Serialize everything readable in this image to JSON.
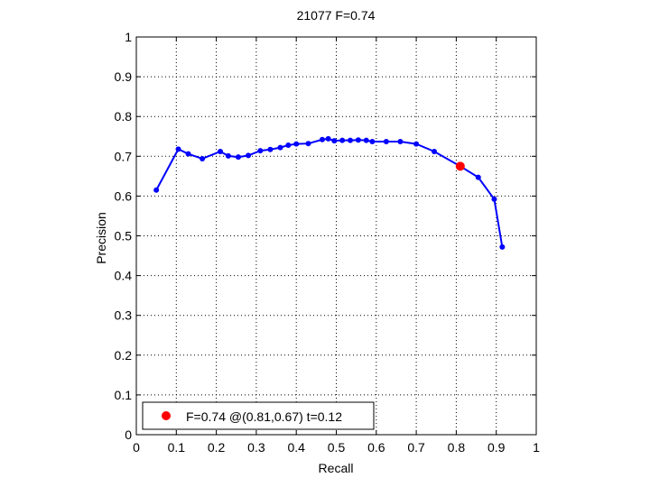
{
  "chart_data": {
    "type": "line",
    "title": "21077 F=0.74",
    "xlabel": "Recall",
    "ylabel": "Precision",
    "xlim": [
      0,
      1
    ],
    "ylim": [
      0,
      1
    ],
    "xticks": [
      "0",
      "0.1",
      "0.2",
      "0.3",
      "0.4",
      "0.5",
      "0.6",
      "0.7",
      "0.8",
      "0.9",
      "1"
    ],
    "yticks": [
      "0",
      "0.1",
      "0.2",
      "0.3",
      "0.4",
      "0.5",
      "0.6",
      "0.7",
      "0.8",
      "0.9",
      "1"
    ],
    "grid": true,
    "series": [
      {
        "color": "#0000ff",
        "points": [
          [
            0.05,
            0.615
          ],
          [
            0.105,
            0.718
          ],
          [
            0.13,
            0.706
          ],
          [
            0.165,
            0.694
          ],
          [
            0.21,
            0.712
          ],
          [
            0.23,
            0.701
          ],
          [
            0.255,
            0.698
          ],
          [
            0.28,
            0.702
          ],
          [
            0.31,
            0.714
          ],
          [
            0.335,
            0.717
          ],
          [
            0.36,
            0.722
          ],
          [
            0.38,
            0.728
          ],
          [
            0.4,
            0.731
          ],
          [
            0.43,
            0.732
          ],
          [
            0.465,
            0.742
          ],
          [
            0.48,
            0.744
          ],
          [
            0.495,
            0.739
          ],
          [
            0.515,
            0.74
          ],
          [
            0.535,
            0.74
          ],
          [
            0.555,
            0.741
          ],
          [
            0.575,
            0.74
          ],
          [
            0.59,
            0.737
          ],
          [
            0.625,
            0.737
          ],
          [
            0.66,
            0.737
          ],
          [
            0.7,
            0.731
          ],
          [
            0.745,
            0.712
          ],
          [
            0.81,
            0.675
          ],
          [
            0.855,
            0.647
          ],
          [
            0.895,
            0.592
          ],
          [
            0.915,
            0.472
          ]
        ]
      }
    ],
    "highlight_point": {
      "x": 0.81,
      "y": 0.675,
      "color": "#ff0000"
    },
    "legend": {
      "placement": "bottom-left",
      "entries": [
        {
          "label": "F=0.74 @(0.81,0.67) t=0.12",
          "color": "#ff0000"
        }
      ]
    }
  }
}
